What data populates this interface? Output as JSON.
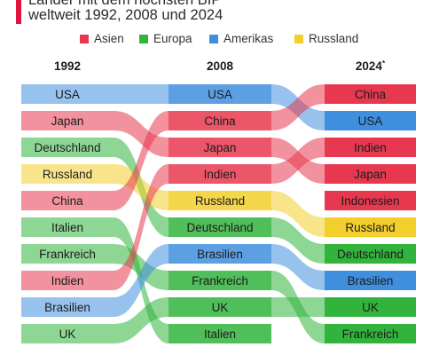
{
  "header": {
    "title_line1": "Länder mit dem höchsten BIP",
    "title_line2": "weltweit 1992, 2008 und 2024"
  },
  "legend": [
    {
      "name": "Asien",
      "color": "#e8384f"
    },
    {
      "name": "Europa",
      "color": "#32b43c"
    },
    {
      "name": "Amerikas",
      "color": "#3f8fde"
    },
    {
      "name": "Russland",
      "color": "#f2cf2c"
    }
  ],
  "chart_data": {
    "type": "bump",
    "years": [
      "1992",
      "2008",
      "2024*"
    ],
    "countries": [
      {
        "name": "USA",
        "region": "Amerikas",
        "ranks": [
          1,
          1,
          2
        ]
      },
      {
        "name": "Japan",
        "region": "Asien",
        "ranks": [
          2,
          3,
          4
        ]
      },
      {
        "name": "Deutschland",
        "region": "Europa",
        "ranks": [
          3,
          6,
          7
        ]
      },
      {
        "name": "Russland",
        "region": "Russland",
        "ranks": [
          4,
          5,
          6
        ]
      },
      {
        "name": "China",
        "region": "Asien",
        "ranks": [
          5,
          2,
          1
        ]
      },
      {
        "name": "Italien",
        "region": "Europa",
        "ranks": [
          6,
          10,
          null
        ]
      },
      {
        "name": "Frankreich",
        "region": "Europa",
        "ranks": [
          7,
          8,
          10
        ]
      },
      {
        "name": "Indien",
        "region": "Asien",
        "ranks": [
          8,
          4,
          3
        ]
      },
      {
        "name": "Brasilien",
        "region": "Amerikas",
        "ranks": [
          9,
          7,
          8
        ]
      },
      {
        "name": "UK",
        "region": "Europa",
        "ranks": [
          10,
          9,
          9
        ]
      },
      {
        "name": "Indonesien",
        "region": "Asien",
        "ranks": [
          null,
          null,
          5
        ]
      }
    ]
  }
}
